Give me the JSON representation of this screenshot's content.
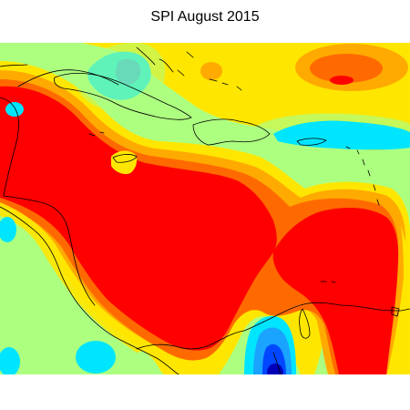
{
  "title": "SPI August 2015",
  "colors": {
    "extreme_dry": "#ff0000",
    "severe_dry": "#ff6a00",
    "moderate_dry": "#ffaa00",
    "mild_dry": "#ffe600",
    "near_normal": "#adff80",
    "mild_wet": "#00e5ff",
    "moderate_wet": "#1aa3ff",
    "very_wet": "#0047ff",
    "extreme_wet": "#0000b8",
    "coastline": "#000000"
  }
}
